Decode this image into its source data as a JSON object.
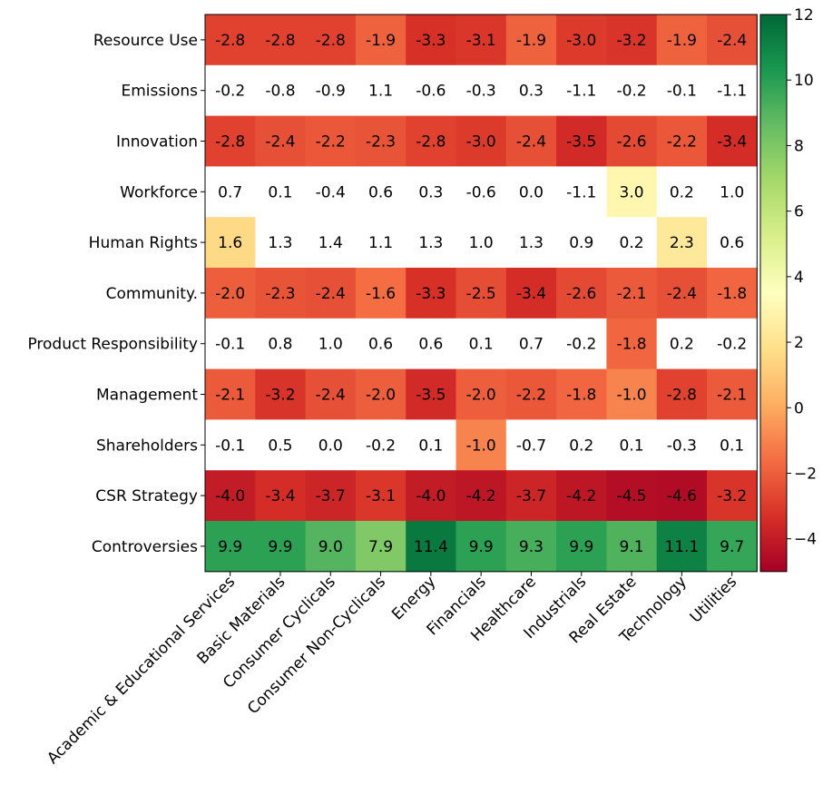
{
  "chart_data": {
    "type": "heatmap",
    "title": "",
    "xlabel": "",
    "ylabel": "",
    "rows": [
      "Resource Use",
      "Emissions",
      "Innovation",
      "Workforce",
      "Human Rights",
      "Community.",
      "Product Responsibility",
      "Management",
      "Shareholders",
      "CSR Strategy",
      "Controversies"
    ],
    "columns": [
      "Academic & Educational Services",
      "Basic Materials",
      "Consumer Cyclicals",
      "Consumer Non-Cyclicals",
      "Energy",
      "Financials",
      "Healthcare",
      "Industrials",
      "Real Estate",
      "Technology",
      "Utilities"
    ],
    "values": [
      [
        -2.8,
        -2.8,
        -2.8,
        -1.9,
        -3.3,
        -3.1,
        -1.9,
        -3.0,
        -3.2,
        -1.9,
        -2.4
      ],
      [
        -0.2,
        -0.8,
        -0.9,
        1.1,
        -0.6,
        -0.3,
        0.3,
        -1.1,
        -0.2,
        -0.1,
        -1.1
      ],
      [
        -2.8,
        -2.4,
        -2.2,
        -2.3,
        -2.8,
        -3.0,
        -2.4,
        -3.5,
        -2.6,
        -2.2,
        -3.4
      ],
      [
        0.7,
        0.1,
        -0.4,
        0.6,
        0.3,
        -0.6,
        0.0,
        -1.1,
        3.0,
        0.2,
        1.0
      ],
      [
        1.6,
        1.3,
        1.4,
        1.1,
        1.3,
        1.0,
        1.3,
        0.9,
        0.2,
        2.3,
        0.6
      ],
      [
        -2.0,
        -2.3,
        -2.4,
        -1.6,
        -3.3,
        -2.5,
        -3.4,
        -2.6,
        -2.1,
        -2.4,
        -1.8
      ],
      [
        -0.1,
        0.8,
        1.0,
        0.6,
        0.6,
        0.1,
        0.7,
        -0.2,
        -1.8,
        0.2,
        -0.2
      ],
      [
        -2.1,
        -3.2,
        -2.4,
        -2.0,
        -3.5,
        -2.0,
        -2.2,
        -1.8,
        -1.0,
        -2.8,
        -2.1
      ],
      [
        -0.1,
        0.5,
        0.0,
        -0.2,
        0.1,
        -1.0,
        -0.7,
        0.2,
        0.1,
        -0.3,
        0.1
      ],
      [
        -4.0,
        -3.4,
        -3.7,
        -3.1,
        -4.0,
        -4.2,
        -3.7,
        -4.2,
        -4.5,
        -4.6,
        -3.2
      ],
      [
        9.9,
        9.9,
        9.0,
        7.9,
        11.4,
        9.9,
        9.3,
        9.9,
        9.1,
        11.1,
        9.7
      ]
    ],
    "colormap": "RdYlGn",
    "color_range": [
      -5,
      12
    ],
    "colorbar_ticks": [
      -4,
      -2,
      0,
      2,
      4,
      6,
      8,
      10,
      12
    ],
    "colorbar_tick_labels": [
      "−4",
      "−2",
      "0",
      "2",
      "4",
      "6",
      "8",
      "10",
      "12"
    ],
    "grid": false
  }
}
